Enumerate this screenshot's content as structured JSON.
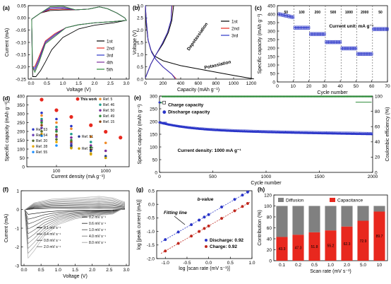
{
  "panels": {
    "a": {
      "label": "(a)",
      "chart_data": {
        "type": "line",
        "xlabel": "Voltage (V)",
        "ylabel": "Current (mA)",
        "xlim": [
          0.0,
          3.0
        ],
        "ylim": [
          -0.25,
          0.05
        ],
        "xticks": [
          "0.0",
          "0.5",
          "1.0",
          "1.5",
          "2.0",
          "2.5",
          "3.0"
        ],
        "yticks": [
          "0.05",
          "0.00",
          "-0.05",
          "-0.10",
          "-0.15",
          "-0.20",
          "-0.25"
        ],
        "legend": "right",
        "series": [
          {
            "name": "1st",
            "color": "#000000"
          },
          {
            "name": "2nd",
            "color": "#e8281e"
          },
          {
            "name": "3rd",
            "color": "#2a35c8"
          },
          {
            "name": "4th",
            "color": "#7b2d9b"
          },
          {
            "name": "5th",
            "color": "#2e8b3a"
          }
        ]
      }
    },
    "b": {
      "label": "(b)",
      "chart_data": {
        "type": "line",
        "xlabel": "Capacity (mAh g⁻¹)",
        "ylabel": "Voltage (V)",
        "xlim": [
          0,
          1200
        ],
        "ylim": [
          0.0,
          3.0
        ],
        "xticks": [
          "0",
          "200",
          "400",
          "600",
          "800",
          "1000",
          "1200"
        ],
        "yticks": [
          "0.0",
          "0.5",
          "1.0",
          "1.5",
          "2.0",
          "2.5",
          "3.0"
        ],
        "annotations": [
          "Depotassiation",
          "Potassiation"
        ],
        "series": [
          {
            "name": "1st",
            "color": "#000000"
          },
          {
            "name": "2nd",
            "color": "#e8281e"
          },
          {
            "name": "3rd",
            "color": "#2a35c8"
          }
        ]
      }
    },
    "c": {
      "label": "(c)",
      "chart_data": {
        "type": "scatter",
        "xlabel": "Cycle number",
        "ylabel": "Specific capacity (mAh g⁻¹)",
        "xlim": [
          0,
          70
        ],
        "ylim": [
          0,
          450
        ],
        "xticks": [
          "0",
          "10",
          "20",
          "30",
          "40",
          "50",
          "60",
          "70"
        ],
        "yticks": [
          "0",
          "50",
          "100",
          "150",
          "200",
          "250",
          "300",
          "350",
          "400",
          "450"
        ],
        "unit_note": "Current unit: mA g⁻¹",
        "rates": [
          "50",
          "100",
          "200",
          "500",
          "1000",
          "2000",
          "50"
        ],
        "segments": [
          {
            "x": [
              1,
              10
            ],
            "value": 380
          },
          {
            "x": [
              11,
              20
            ],
            "value": 320
          },
          {
            "x": [
              21,
              30
            ],
            "value": 282
          },
          {
            "x": [
              31,
              40
            ],
            "value": 235
          },
          {
            "x": [
              41,
              50
            ],
            "value": 198
          },
          {
            "x": [
              51,
              60
            ],
            "value": 165
          },
          {
            "x": [
              61,
              70
            ],
            "value": 312
          }
        ],
        "color": "#2a35c8"
      }
    },
    "d": {
      "label": "(d)",
      "chart_data": {
        "type": "scatter",
        "xlabel": "Current density (mA g⁻¹)",
        "ylabel": "Specific capacity (mAh g⁻¹)",
        "xscale": "log",
        "xlim": [
          25,
          3000
        ],
        "ylim": [
          0,
          400
        ],
        "xticks": [
          "100",
          "1000"
        ],
        "yticks": [
          "0",
          "50",
          "100",
          "150",
          "200",
          "250",
          "300",
          "350",
          "400"
        ],
        "series": [
          {
            "name": "This work",
            "color": "#e8281e",
            "points": [
              [
                50,
                380
              ],
              [
                100,
                320
              ],
              [
                200,
                282
              ],
              [
                500,
                235
              ],
              [
                1000,
                198
              ],
              [
                2000,
                165
              ]
            ]
          },
          {
            "name": "Ref. 5",
            "color": "#f08c28",
            "points": [
              [
                50,
                290
              ],
              [
                100,
                250
              ],
              [
                200,
                215
              ],
              [
                500,
                170
              ],
              [
                1000,
                135
              ]
            ]
          },
          {
            "name": "Ref. 46",
            "color": "#1f9e8a",
            "points": [
              [
                50,
                270
              ],
              [
                100,
                225
              ],
              [
                200,
                185
              ],
              [
                500,
                140
              ]
            ]
          },
          {
            "name": "Ref. 50",
            "color": "#7b2d9b",
            "points": [
              [
                50,
                260
              ],
              [
                100,
                210
              ],
              [
                200,
                165
              ],
              [
                500,
                120
              ],
              [
                1000,
                90
              ]
            ]
          },
          {
            "name": "Ref. 49",
            "color": "#2e8b3a",
            "points": [
              [
                50,
                250
              ],
              [
                100,
                200
              ],
              [
                200,
                150
              ],
              [
                500,
                110
              ]
            ]
          },
          {
            "name": "Ref. 15",
            "color": "#8b4513",
            "points": [
              [
                50,
                235
              ],
              [
                100,
                180
              ],
              [
                200,
                140
              ],
              [
                500,
                95
              ]
            ]
          },
          {
            "name": "Ref. 53",
            "color": "#2a35c8",
            "points": [
              [
                50,
                305
              ],
              [
                100,
                270
              ],
              [
                200,
                230
              ]
            ]
          },
          {
            "name": "Ref. 54",
            "color": "#6a3fb5",
            "points": [
              [
                50,
                220
              ],
              [
                100,
                170
              ],
              [
                200,
                130
              ]
            ]
          },
          {
            "name": "Ref. 20",
            "color": "#556b2f",
            "points": [
              [
                50,
                200
              ],
              [
                100,
                155
              ],
              [
                200,
                110
              ]
            ]
          },
          {
            "name": "Ref. 28",
            "color": "#e6a800",
            "points": [
              [
                50,
                185
              ],
              [
                100,
                140
              ],
              [
                500,
                70
              ]
            ]
          },
          {
            "name": "Ref. 55",
            "color": "#1e90ff",
            "points": [
              [
                50,
                175
              ],
              [
                100,
                120
              ]
            ]
          },
          {
            "name": "Ref. 51",
            "color": "#1f3a93",
            "points": [
              [
                200,
                120
              ],
              [
                500,
                90
              ],
              [
                1000,
                60
              ]
            ]
          },
          {
            "name": "Ref. 52",
            "color": "#c8a000",
            "points": [
              [
                200,
                105
              ],
              [
                500,
                75
              ],
              [
                1000,
                50
              ]
            ]
          }
        ]
      }
    },
    "e": {
      "label": "(e)",
      "chart_data": {
        "type": "scatter",
        "xlabel": "Cycle number",
        "ylabel": "Specific capacity (mAh g⁻¹)",
        "y2label": "Coulombic efficiency (%)",
        "xlim": [
          0,
          2000
        ],
        "ylim": [
          0,
          300
        ],
        "y2lim": [
          0,
          100
        ],
        "xticks": [
          "0",
          "500",
          "1000",
          "1500",
          "2000"
        ],
        "yticks": [
          "0",
          "50",
          "100",
          "150",
          "200",
          "250",
          "300"
        ],
        "y2ticks": [
          "0",
          "20",
          "40",
          "60",
          "80",
          "100"
        ],
        "annotation": "Current density: 1000 mA g⁻¹",
        "series": [
          {
            "name": "Charge capacity",
            "color": "#2a35c8",
            "start": 225,
            "end": 152
          },
          {
            "name": "Discharge capacity",
            "color": "#2a35c8",
            "start": 230,
            "end": 150
          },
          {
            "name": "Coulombic efficiency",
            "color": "#2e8b3a",
            "value": 99.5
          }
        ]
      }
    },
    "f": {
      "label": "(f)",
      "chart_data": {
        "type": "line",
        "xlabel": "Voltage (V)",
        "ylabel": "Current (mA)",
        "xlim": [
          0.0,
          3.0
        ],
        "ylim": [
          -3,
          1
        ],
        "xticks": [
          "0.0",
          "0.5",
          "1.0",
          "1.5",
          "2.0",
          "2.5",
          "3.0"
        ],
        "yticks": [
          "1",
          "0",
          "-1",
          "-2",
          "-3"
        ],
        "series": [
          {
            "name": "0.1 mV s⁻¹"
          },
          {
            "name": "0.2 mV s⁻¹"
          },
          {
            "name": "0.4 mV s⁻¹"
          },
          {
            "name": "0.6 mV s⁻¹"
          },
          {
            "name": "0.8 mV s⁻¹"
          },
          {
            "name": "1.0 mV s⁻¹"
          },
          {
            "name": "2.0 mV s⁻¹"
          },
          {
            "name": "4.0 mV s⁻¹"
          },
          {
            "name": "6.0 mV s⁻¹"
          },
          {
            "name": "8.0 mV s⁻¹"
          }
        ]
      }
    },
    "g": {
      "label": "(g)",
      "chart_data": {
        "type": "scatter",
        "xlabel": "log [scan rate (mV s⁻¹)]",
        "ylabel": "log [peak current (mA)]",
        "xlim": [
          -1.2,
          1.0
        ],
        "ylim": [
          -2.0,
          0.5
        ],
        "xticks": [
          "-1.0",
          "-0.5",
          "0.0",
          "0.5",
          "1.0"
        ],
        "yticks": [
          "0.5",
          "0.0",
          "-0.5",
          "-1.0",
          "-1.5",
          "-2.0"
        ],
        "title": "b-value",
        "annotation": "Fitting line",
        "series": [
          {
            "name": "Discharge: 0.92",
            "color": "#2a35c8",
            "x": [
              -1.0,
              -0.7,
              -0.4,
              -0.22,
              -0.1,
              0.0,
              0.3,
              0.6,
              0.78,
              0.9
            ],
            "y": [
              -1.3,
              -1.02,
              -0.75,
              -0.58,
              -0.47,
              -0.38,
              -0.1,
              0.18,
              0.34,
              0.45
            ]
          },
          {
            "name": "Charge: 0.92",
            "color": "#c0281e",
            "x": [
              -1.0,
              -0.7,
              -0.4,
              -0.22,
              -0.1,
              0.0,
              0.3,
              0.6,
              0.78,
              0.9
            ],
            "y": [
              -1.72,
              -1.44,
              -1.17,
              -1.0,
              -0.89,
              -0.8,
              -0.52,
              -0.24,
              -0.08,
              0.03
            ]
          }
        ]
      }
    },
    "h": {
      "label": "(h)",
      "chart_data": {
        "type": "bar",
        "xlabel": "Scan rate (mV s⁻¹)",
        "ylabel": "Contribution (%)",
        "ylim": [
          0,
          120
        ],
        "yticks": [
          "0",
          "20",
          "40",
          "60",
          "80",
          "100",
          "120"
        ],
        "categories": [
          "0.1",
          "0.2",
          "0.5",
          "1.0",
          "2.0",
          "5.0",
          "10"
        ],
        "series": [
          {
            "name": "Diffusion",
            "color": "#808080"
          },
          {
            "name": "Capacitance",
            "color": "#e8281e",
            "values": [
              43.3,
              47.3,
              51.8,
              55.2,
              62.3,
              72.9,
              89.7
            ],
            "labels": [
              "43.3",
              "47.3",
              "51.8",
              "55.2",
              "62.3",
              "72.9",
              "89.7"
            ]
          }
        ]
      }
    }
  }
}
